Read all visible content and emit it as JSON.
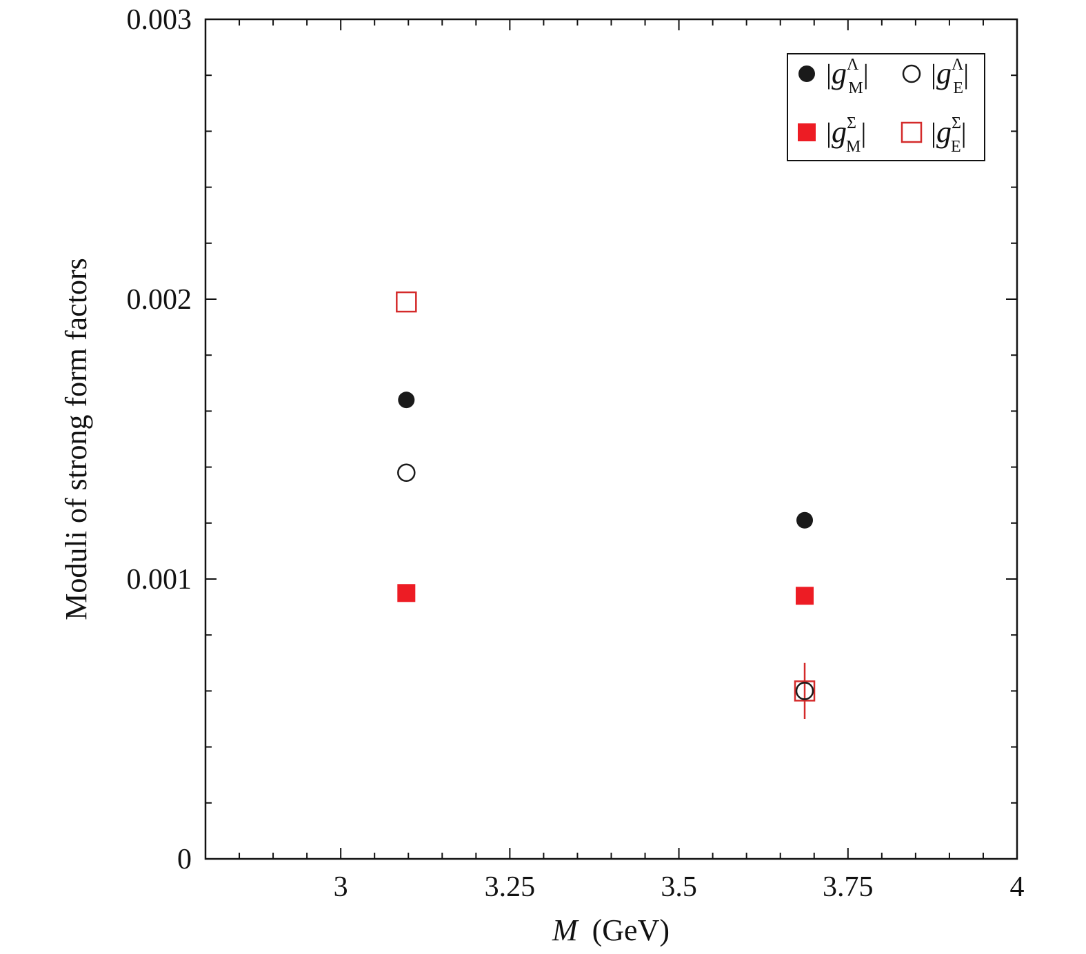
{
  "chart_data": {
    "type": "scatter",
    "xlabel_italic": "M",
    "xlabel_rest": "(GeV)",
    "ylabel": "Moduli of strong form factors",
    "xlim": [
      2.8,
      4.0
    ],
    "ylim": [
      0,
      0.003
    ],
    "x_ticks": [
      3,
      3.25,
      3.5,
      3.75,
      4
    ],
    "x_tick_labels": [
      "3",
      "3.25",
      "3.5",
      "3.75",
      "4"
    ],
    "y_ticks": [
      0,
      0.001,
      0.002,
      0.003
    ],
    "y_tick_labels": [
      "0",
      "0.001",
      "0.002",
      "0.003"
    ],
    "grid": false,
    "legend_position": "top-right",
    "series": [
      {
        "name": "|g_M^Λ|",
        "legend": {
          "base": "g",
          "sub": "M",
          "sup": "Λ"
        },
        "marker": "filled-circle",
        "color": "#1a1a1a",
        "points": [
          {
            "x": 3.097,
            "y": 0.00164
          },
          {
            "x": 3.686,
            "y": 0.00121
          }
        ]
      },
      {
        "name": "|g_E^Λ|",
        "legend": {
          "base": "g",
          "sub": "E",
          "sup": "Λ"
        },
        "marker": "open-circle",
        "color": "#1a1a1a",
        "points": [
          {
            "x": 3.097,
            "y": 0.00138
          },
          {
            "x": 3.686,
            "y": 0.0006
          }
        ]
      },
      {
        "name": "|g_M^Σ|",
        "legend": {
          "base": "g",
          "sub": "M",
          "sup": "Σ"
        },
        "marker": "filled-square",
        "color": "#ed1c24",
        "points": [
          {
            "x": 3.097,
            "y": 0.00095
          },
          {
            "x": 3.686,
            "y": 0.00094
          }
        ]
      },
      {
        "name": "|g_E^Σ|",
        "legend": {
          "base": "g",
          "sub": "E",
          "sup": "Σ"
        },
        "marker": "open-square",
        "color": "#d42a2a",
        "points": [
          {
            "x": 3.097,
            "y": 0.00199
          },
          {
            "x": 3.686,
            "y": 0.0006,
            "yerr": 0.0001
          }
        ]
      }
    ]
  }
}
